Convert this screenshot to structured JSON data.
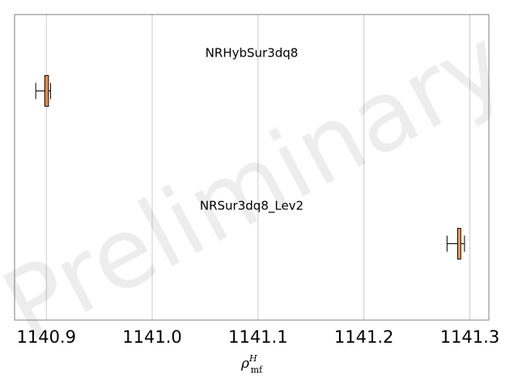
{
  "chart_data": {
    "type": "box",
    "orientation": "horizontal",
    "title": "",
    "xlabel": "ρ^H_mf",
    "xlabel_parts": {
      "base": "ρ",
      "sup": "H",
      "sub": "mf"
    },
    "ylabel": "",
    "xlim": [
      1140.87,
      1141.318
    ],
    "xticks": [
      1140.9,
      1141.0,
      1141.1,
      1141.2,
      1141.3
    ],
    "xtick_labels": [
      "1140.9",
      "1141.0",
      "1141.1",
      "1141.2",
      "1141.3"
    ],
    "grid": {
      "x": true,
      "y": false
    },
    "watermark": "Preliminary",
    "series": [
      {
        "name": "NRHybSur3dq8",
        "whisker_low": 1140.89,
        "q1": 1140.8985,
        "median": 1140.9,
        "q3": 1140.902,
        "whisker_high": 1140.904
      },
      {
        "name": "NRSur3dq8_Lev2",
        "whisker_low": 1141.2785,
        "q1": 1141.2885,
        "median": 1141.291,
        "q3": 1141.2915,
        "whisker_high": 1141.295
      }
    ],
    "colors": {
      "box_fill": "#f4a460",
      "box_edge": "#000000",
      "grid": "#cccccc",
      "frame": "#808080"
    }
  }
}
